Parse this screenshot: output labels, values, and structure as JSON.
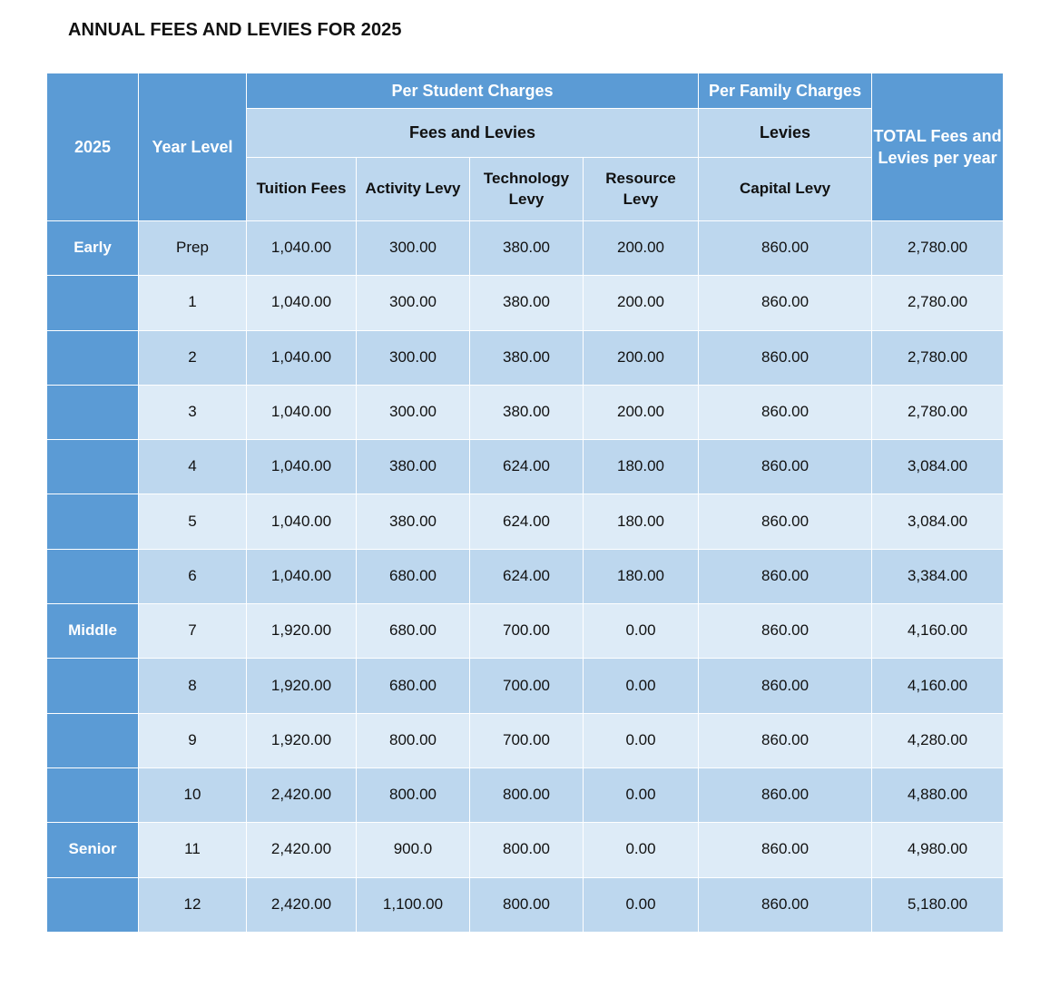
{
  "title": "ANNUAL FEES AND LEVIES FOR 2025",
  "header": {
    "year": "2025",
    "year_level": "Year Level",
    "per_student": "Per Student Charges",
    "per_family": "Per Family Charges",
    "fees_and_levies": "Fees and Levies",
    "levies": "Levies",
    "total": "TOTAL Fees and Levies per year",
    "columns": {
      "tuition": "Tuition Fees",
      "activity": "Activity Levy",
      "technology": "Technology Levy",
      "resource": "Resource Levy",
      "capital": "Capital Levy"
    }
  },
  "rows": [
    {
      "group": "Early",
      "level": "Prep",
      "tuition": "1,040.00",
      "activity": "300.00",
      "technology": "380.00",
      "resource": "200.00",
      "capital": "860.00",
      "total": "2,780.00"
    },
    {
      "group": "",
      "level": "1",
      "tuition": "1,040.00",
      "activity": "300.00",
      "technology": "380.00",
      "resource": "200.00",
      "capital": "860.00",
      "total": "2,780.00"
    },
    {
      "group": "",
      "level": "2",
      "tuition": "1,040.00",
      "activity": "300.00",
      "technology": "380.00",
      "resource": "200.00",
      "capital": "860.00",
      "total": "2,780.00"
    },
    {
      "group": "",
      "level": "3",
      "tuition": "1,040.00",
      "activity": "300.00",
      "technology": "380.00",
      "resource": "200.00",
      "capital": "860.00",
      "total": "2,780.00"
    },
    {
      "group": "",
      "level": "4",
      "tuition": "1,040.00",
      "activity": "380.00",
      "technology": "624.00",
      "resource": "180.00",
      "capital": "860.00",
      "total": "3,084.00"
    },
    {
      "group": "",
      "level": "5",
      "tuition": "1,040.00",
      "activity": "380.00",
      "technology": "624.00",
      "resource": "180.00",
      "capital": "860.00",
      "total": "3,084.00"
    },
    {
      "group": "",
      "level": "6",
      "tuition": "1,040.00",
      "activity": "680.00",
      "technology": "624.00",
      "resource": "180.00",
      "capital": "860.00",
      "total": "3,384.00"
    },
    {
      "group": "Middle",
      "level": "7",
      "tuition": "1,920.00",
      "activity": "680.00",
      "technology": "700.00",
      "resource": "0.00",
      "capital": "860.00",
      "total": "4,160.00"
    },
    {
      "group": "",
      "level": "8",
      "tuition": "1,920.00",
      "activity": "680.00",
      "technology": "700.00",
      "resource": "0.00",
      "capital": "860.00",
      "total": "4,160.00"
    },
    {
      "group": "",
      "level": "9",
      "tuition": "1,920.00",
      "activity": "800.00",
      "technology": "700.00",
      "resource": "0.00",
      "capital": "860.00",
      "total": "4,280.00"
    },
    {
      "group": "",
      "level": "10",
      "tuition": "2,420.00",
      "activity": "800.00",
      "technology": "800.00",
      "resource": "0.00",
      "capital": "860.00",
      "total": "4,880.00"
    },
    {
      "group": "Senior",
      "level": "11",
      "tuition": "2,420.00",
      "activity": "900.0",
      "technology": "800.00",
      "resource": "0.00",
      "capital": "860.00",
      "total": "4,980.00"
    },
    {
      "group": "",
      "level": "12",
      "tuition": "2,420.00",
      "activity": "1,100.00",
      "technology": "800.00",
      "resource": "0.00",
      "capital": "860.00",
      "total": "5,180.00"
    }
  ],
  "colors": {
    "header_blue": "#5b9bd5",
    "header_light": "#bdd7ee",
    "row_dark": "#bdd7ee",
    "row_light": "#ddebf7"
  }
}
